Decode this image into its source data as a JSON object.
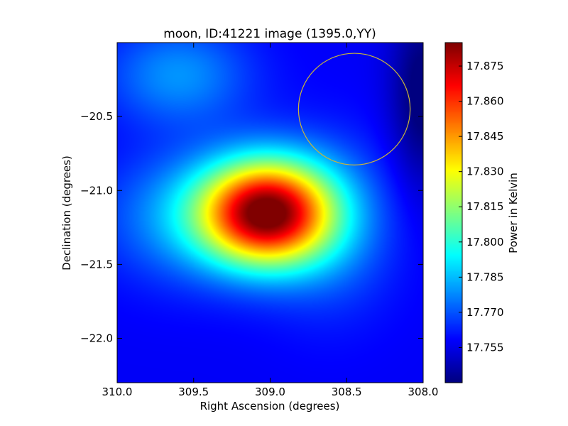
{
  "chart_data": {
    "type": "heatmap",
    "title": "moon, ID:41221 image (1395.0,YY)",
    "xlabel": "Right Ascension (degrees)",
    "ylabel": "Declination (degrees)",
    "xlim": [
      310.0,
      308.0
    ],
    "ylim": [
      -22.3,
      -20.0
    ],
    "x_ticks": [
      310.0,
      309.5,
      309.0,
      308.5,
      308.0
    ],
    "x_tick_labels": [
      "310.0",
      "309.5",
      "309.0",
      "308.5",
      "308.0"
    ],
    "y_ticks": [
      -20.5,
      -21.0,
      -21.5,
      -22.0
    ],
    "y_tick_labels": [
      "−20.5",
      "−21.0",
      "−21.5",
      "−22.0"
    ],
    "colormap": "jet",
    "colorbar": {
      "label": "Power in Kelvin",
      "range": [
        17.74,
        17.885
      ],
      "ticks": [
        17.755,
        17.77,
        17.785,
        17.8,
        17.815,
        17.83,
        17.845,
        17.86,
        17.875
      ],
      "tick_labels": [
        "17.755",
        "17.770",
        "17.785",
        "17.800",
        "17.815",
        "17.830",
        "17.845",
        "17.860",
        "17.875"
      ]
    },
    "field": {
      "background": 17.757,
      "components": [
        {
          "ra": 309.02,
          "dec": -21.15,
          "amp": 0.123,
          "sigma_ra": 0.3,
          "sigma_dec": 0.25
        },
        {
          "ra": 309.55,
          "dec": -21.18,
          "amp": 0.022,
          "sigma_ra": 0.38,
          "sigma_dec": 0.3
        },
        {
          "ra": 308.6,
          "dec": -21.25,
          "amp": 0.016,
          "sigma_ra": 0.3,
          "sigma_dec": 0.4
        },
        {
          "ra": 309.6,
          "dec": -20.22,
          "amp": 0.022,
          "sigma_ra": 0.33,
          "sigma_dec": 0.24
        },
        {
          "ra": 308.0,
          "dec": -20.35,
          "amp": -0.02,
          "sigma_ra": 0.15,
          "sigma_dec": 0.45
        }
      ]
    },
    "annotation": {
      "shape": "circle",
      "ra": 308.45,
      "dec": -20.45,
      "radius_deg": 0.365,
      "color": "#c8b43c"
    }
  },
  "colors": {
    "frame": "#000000",
    "circle": "#c8b43c"
  }
}
